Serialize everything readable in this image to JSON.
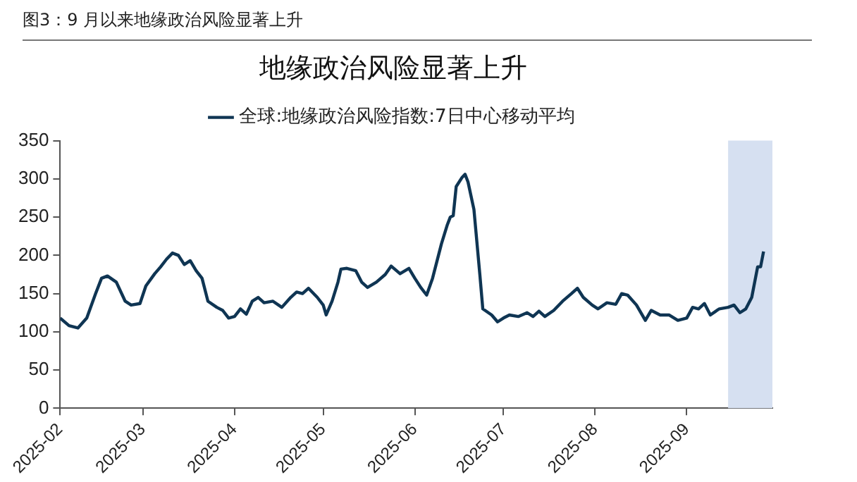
{
  "chart_data": {
    "type": "line",
    "title": "地缘政治风险显著上升",
    "annotations": [
      "图3：9 月以来地缘政治风险显著上升"
    ],
    "x": [
      "2025-02-01",
      "2025-02-04",
      "2025-02-07",
      "2025-02-10",
      "2025-02-13",
      "2025-02-15",
      "2025-02-17",
      "2025-02-20",
      "2025-02-23",
      "2025-02-25",
      "2025-02-28",
      "2025-03-02",
      "2025-03-05",
      "2025-03-07",
      "2025-03-09",
      "2025-03-11",
      "2025-03-13",
      "2025-03-15",
      "2025-03-17",
      "2025-03-19",
      "2025-03-21",
      "2025-03-23",
      "2025-03-26",
      "2025-03-28",
      "2025-03-30",
      "2025-04-01",
      "2025-04-03",
      "2025-04-05",
      "2025-04-07",
      "2025-04-09",
      "2025-04-11",
      "2025-04-14",
      "2025-04-17",
      "2025-04-20",
      "2025-04-22",
      "2025-04-24",
      "2025-04-26",
      "2025-04-29",
      "2025-05-01",
      "2025-05-02",
      "2025-05-04",
      "2025-05-06",
      "2025-05-07",
      "2025-05-09",
      "2025-05-12",
      "2025-05-14",
      "2025-05-16",
      "2025-05-19",
      "2025-05-22",
      "2025-05-24",
      "2025-05-27",
      "2025-05-30",
      "2025-06-01",
      "2025-06-03",
      "2025-06-05",
      "2025-06-07",
      "2025-06-10",
      "2025-06-12",
      "2025-06-13",
      "2025-06-14",
      "2025-06-15",
      "2025-06-17",
      "2025-06-18",
      "2025-06-19",
      "2025-06-21",
      "2025-06-23",
      "2025-06-24",
      "2025-06-27",
      "2025-06-29",
      "2025-07-01",
      "2025-07-03",
      "2025-07-06",
      "2025-07-09",
      "2025-07-11",
      "2025-07-13",
      "2025-07-15",
      "2025-07-18",
      "2025-07-21",
      "2025-07-24",
      "2025-07-26",
      "2025-07-28",
      "2025-07-31",
      "2025-08-02",
      "2025-08-05",
      "2025-08-08",
      "2025-08-10",
      "2025-08-12",
      "2025-08-15",
      "2025-08-18",
      "2025-08-20",
      "2025-08-23",
      "2025-08-26",
      "2025-08-29",
      "2025-09-01",
      "2025-09-03",
      "2025-09-05",
      "2025-09-07",
      "2025-09-09",
      "2025-09-12",
      "2025-09-15",
      "2025-09-17",
      "2025-09-19",
      "2025-09-21",
      "2025-09-23",
      "2025-09-25",
      "2025-09-26",
      "2025-09-27"
    ],
    "series": [
      {
        "name": "全球:地缘政治风险指数:7日中心移动平均",
        "color": "#0f3553",
        "values": [
          118,
          108,
          105,
          118,
          150,
          170,
          173,
          165,
          140,
          135,
          137,
          160,
          176,
          185,
          195,
          203,
          200,
          188,
          193,
          180,
          170,
          140,
          132,
          128,
          118,
          120,
          130,
          123,
          140,
          145,
          138,
          140,
          132,
          145,
          152,
          150,
          157,
          145,
          135,
          122,
          140,
          165,
          182,
          183,
          180,
          165,
          158,
          165,
          175,
          186,
          176,
          183,
          170,
          158,
          148,
          170,
          215,
          240,
          250,
          252,
          290,
          302,
          306,
          296,
          260,
          175,
          130,
          122,
          113,
          118,
          122,
          120,
          125,
          120,
          127,
          120,
          128,
          140,
          150,
          157,
          145,
          135,
          130,
          138,
          136,
          150,
          148,
          135,
          115,
          128,
          122,
          122,
          115,
          118,
          132,
          130,
          137,
          122,
          130,
          132,
          135,
          125,
          130,
          145,
          185,
          185,
          205
        ]
      }
    ],
    "xlim": [
      "2025-02-01",
      "2025-09-30"
    ],
    "xticks": [
      {
        "value": "2025-02-01",
        "label": "2025-02"
      },
      {
        "value": "2025-03-01",
        "label": "2025-03"
      },
      {
        "value": "2025-04-01",
        "label": "2025-04"
      },
      {
        "value": "2025-05-01",
        "label": "2025-05"
      },
      {
        "value": "2025-06-01",
        "label": "2025-06"
      },
      {
        "value": "2025-07-01",
        "label": "2025-07"
      },
      {
        "value": "2025-08-01",
        "label": "2025-08"
      },
      {
        "value": "2025-09-01",
        "label": "2025-09"
      }
    ],
    "ylim": [
      0,
      350
    ],
    "yticks": [
      0,
      50,
      100,
      150,
      200,
      250,
      300,
      350
    ],
    "bands": [
      {
        "axis": "x",
        "from": "2025-09-15",
        "to": "2025-09-30",
        "color": "#d6e0f1"
      }
    ],
    "grid": false,
    "legend": "top",
    "marker": "none",
    "line_style": "solid"
  }
}
